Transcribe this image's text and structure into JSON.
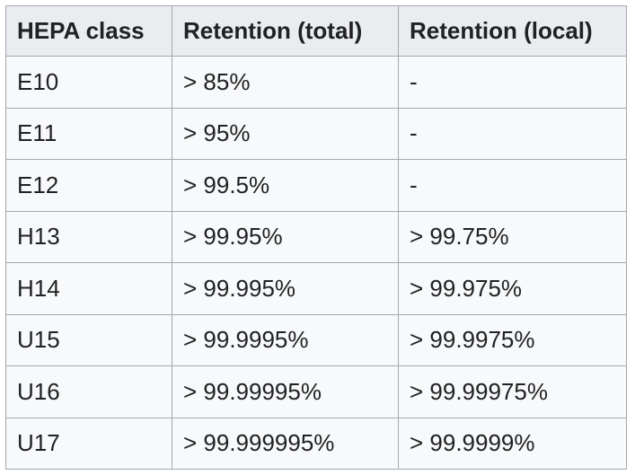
{
  "table": {
    "header": [
      "HEPA class",
      "Retention (total)",
      "Retention (local)"
    ],
    "rows": [
      [
        "E10",
        "> 85%",
        "-"
      ],
      [
        "E11",
        "> 95%",
        "-"
      ],
      [
        "E12",
        "> 99.5%",
        "-"
      ],
      [
        "H13",
        "> 99.95%",
        "> 99.75%"
      ],
      [
        "H14",
        "> 99.995%",
        "> 99.975%"
      ],
      [
        "U15",
        "> 99.9995%",
        "> 99.9975%"
      ],
      [
        "U16",
        "> 99.99995%",
        "> 99.99975%"
      ],
      [
        "U17",
        "> 99.999995%",
        "> 99.9999%"
      ]
    ]
  }
}
